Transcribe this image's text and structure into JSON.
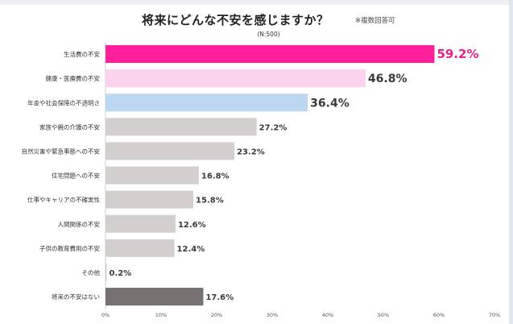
{
  "title": "将来にどんな不安を感じますか？",
  "title_note": "※複数回答可",
  "sample": "(N:500)",
  "chart_data": {
    "type": "bar",
    "orientation": "horizontal",
    "categories": [
      "生活費の不安",
      "健康・医療費の不安",
      "年金や社会保障の不透明さ",
      "家族や親の介護の不安",
      "自然災害や緊急事態への不安",
      "住宅問題への不安",
      "仕事やキャリアの不確実性",
      "人間関係の不安",
      "子供の教育費用の不安",
      "その他",
      "将来の不安はない"
    ],
    "values": [
      59.2,
      46.8,
      36.4,
      27.2,
      23.2,
      16.8,
      15.8,
      12.6,
      12.4,
      0.2,
      17.6
    ],
    "value_labels": [
      "59.2%",
      "46.8%",
      "36.4%",
      "27.2%",
      "23.2%",
      "16.8%",
      "15.8%",
      "12.6%",
      "12.4%",
      "0.2%",
      "17.6%"
    ],
    "colors": [
      "#ff1f9a",
      "#fcd3ee",
      "#bcd8f0",
      "#d3cfcf",
      "#d3cfcf",
      "#d3cfcf",
      "#d3cfcf",
      "#d3cfcf",
      "#d3cfcf",
      "#d3cfcf",
      "#767070"
    ],
    "label_colors": [
      "#e8208c",
      "#3a3a3a",
      "#3a3a3a",
      "#3a3a3a",
      "#3a3a3a",
      "#3a3a3a",
      "#3a3a3a",
      "#3a3a3a",
      "#3a3a3a",
      "#3a3a3a",
      "#3a3a3a"
    ],
    "x_ticks": [
      "0%",
      "10%",
      "20%",
      "30%",
      "40%",
      "50%",
      "60%",
      "70%"
    ],
    "xlim": [
      0,
      70
    ],
    "grid": false
  }
}
